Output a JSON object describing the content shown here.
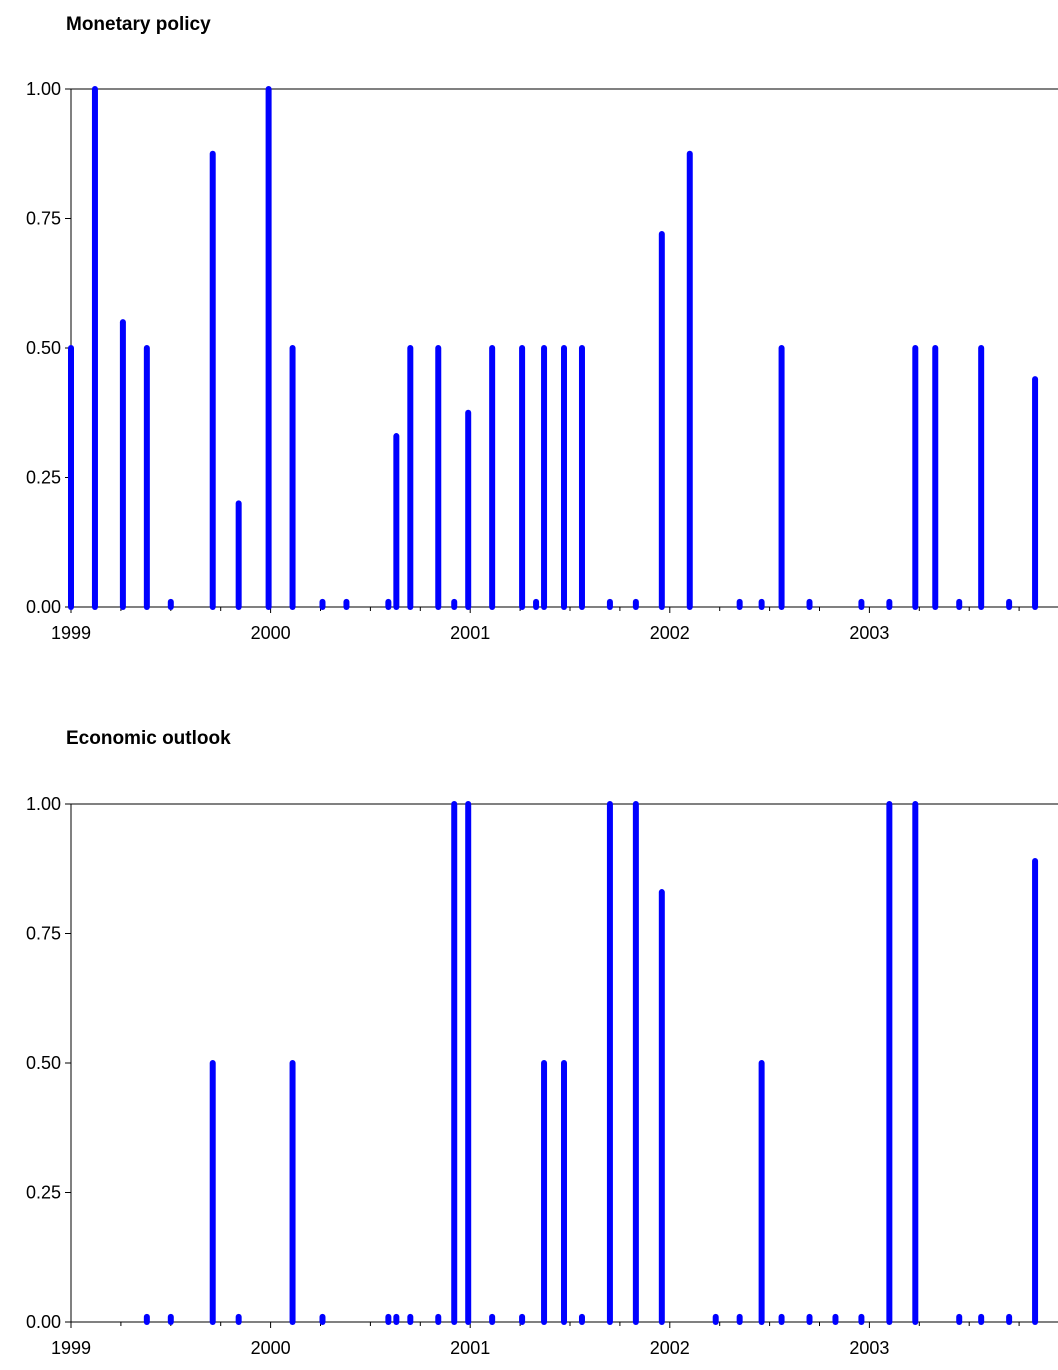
{
  "chart_data": [
    {
      "type": "bar",
      "title": "Monetary policy",
      "xlabel": "",
      "ylabel": "",
      "x_ticks": [
        "1999",
        "2000",
        "2001",
        "2002",
        "2003"
      ],
      "y_ticks": [
        "0.00",
        "0.25",
        "0.50",
        "0.75",
        "1.00"
      ],
      "ylim": [
        0,
        1
      ],
      "xlim": [
        1999.0,
        2003.85
      ],
      "grid": false,
      "color": "#0000ff",
      "x": [
        1999.0,
        1999.12,
        1999.26,
        1999.38,
        1999.5,
        1999.71,
        1999.84,
        1999.99,
        2000.11,
        2000.26,
        2000.38,
        2000.59,
        2000.63,
        2000.7,
        2000.84,
        2000.92,
        2000.99,
        2001.11,
        2001.26,
        2001.33,
        2001.37,
        2001.47,
        2001.56,
        2001.7,
        2001.83,
        2001.96,
        2002.1,
        2002.35,
        2002.46,
        2002.56,
        2002.7,
        2002.96,
        2003.1,
        2003.23,
        2003.33,
        2003.45,
        2003.56,
        2003.7,
        2003.83
      ],
      "values": [
        0.5,
        1.0,
        0.55,
        0.5,
        0.01,
        0.875,
        0.2,
        1.0,
        0.5,
        0.01,
        0.01,
        0.01,
        0.33,
        0.5,
        0.5,
        0.01,
        0.375,
        0.5,
        0.5,
        0.01,
        0.5,
        0.5,
        0.5,
        0.01,
        0.01,
        0.72,
        0.875,
        0.01,
        0.01,
        0.5,
        0.01,
        0.01,
        0.01,
        0.5,
        0.5,
        0.01,
        0.5,
        0.01,
        0.44
      ]
    },
    {
      "type": "bar",
      "title": "Economic outlook",
      "xlabel": "",
      "ylabel": "",
      "x_ticks": [
        "1999",
        "2000",
        "2001",
        "2002",
        "2003"
      ],
      "y_ticks": [
        "0.00",
        "0.25",
        "0.50",
        "0.75",
        "1.00"
      ],
      "ylim": [
        0,
        1
      ],
      "xlim": [
        1999.0,
        2003.85
      ],
      "grid": false,
      "color": "#0000ff",
      "x": [
        1999.38,
        1999.5,
        1999.71,
        1999.84,
        2000.11,
        2000.26,
        2000.59,
        2000.63,
        2000.7,
        2000.84,
        2000.92,
        2000.99,
        2001.11,
        2001.26,
        2001.37,
        2001.47,
        2001.56,
        2001.7,
        2001.83,
        2001.96,
        2002.23,
        2002.35,
        2002.46,
        2002.56,
        2002.7,
        2002.83,
        2002.96,
        2003.1,
        2003.23,
        2003.45,
        2003.56,
        2003.7,
        2003.83
      ],
      "values": [
        0.01,
        0.01,
        0.5,
        0.01,
        0.5,
        0.01,
        0.01,
        0.01,
        0.01,
        0.01,
        1.0,
        1.0,
        0.01,
        0.01,
        0.5,
        0.5,
        0.01,
        1.0,
        1.0,
        0.83,
        0.01,
        0.01,
        0.5,
        0.01,
        0.01,
        0.01,
        0.01,
        1.0,
        1.0,
        0.01,
        0.01,
        0.01,
        0.89
      ]
    }
  ]
}
